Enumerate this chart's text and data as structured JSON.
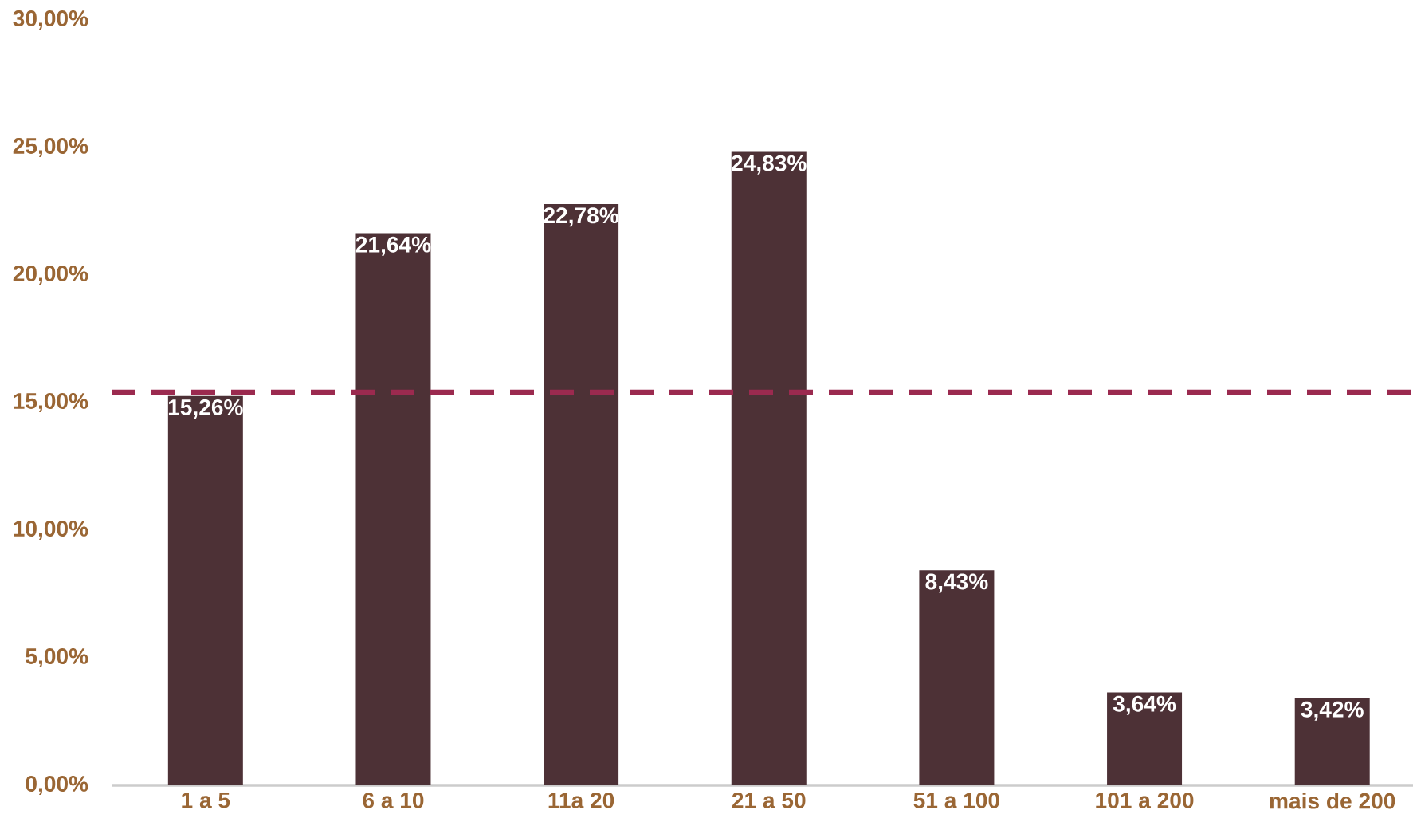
{
  "chart_data": {
    "type": "bar",
    "categories": [
      "1 a 5",
      "6 a 10",
      "11a 20",
      "21 a 50",
      "51 a 100",
      "101 a 200",
      "mais de 200"
    ],
    "values": [
      15.26,
      21.64,
      22.78,
      24.83,
      8.43,
      3.64,
      3.42
    ],
    "value_labels": [
      "15,26%",
      "21,64%",
      "22,78%",
      "24,83%",
      "8,43%",
      "3,64%",
      "3,42%"
    ],
    "color": "#4d3136",
    "ylim": [
      0,
      30
    ],
    "yticks": [
      {
        "value": 0,
        "label": "0,00%"
      },
      {
        "value": 5,
        "label": "5,00%"
      },
      {
        "value": 10,
        "label": "10,00%"
      },
      {
        "value": 15,
        "label": "15,00%"
      },
      {
        "value": 20,
        "label": "20,00%"
      },
      {
        "value": 25,
        "label": "25,00%"
      },
      {
        "value": 30,
        "label": "30,00%"
      }
    ],
    "ref_lines": [
      {
        "axis": "y",
        "value": 15.4,
        "color": "#9b2a4f",
        "line_style": "dashed"
      }
    ]
  }
}
